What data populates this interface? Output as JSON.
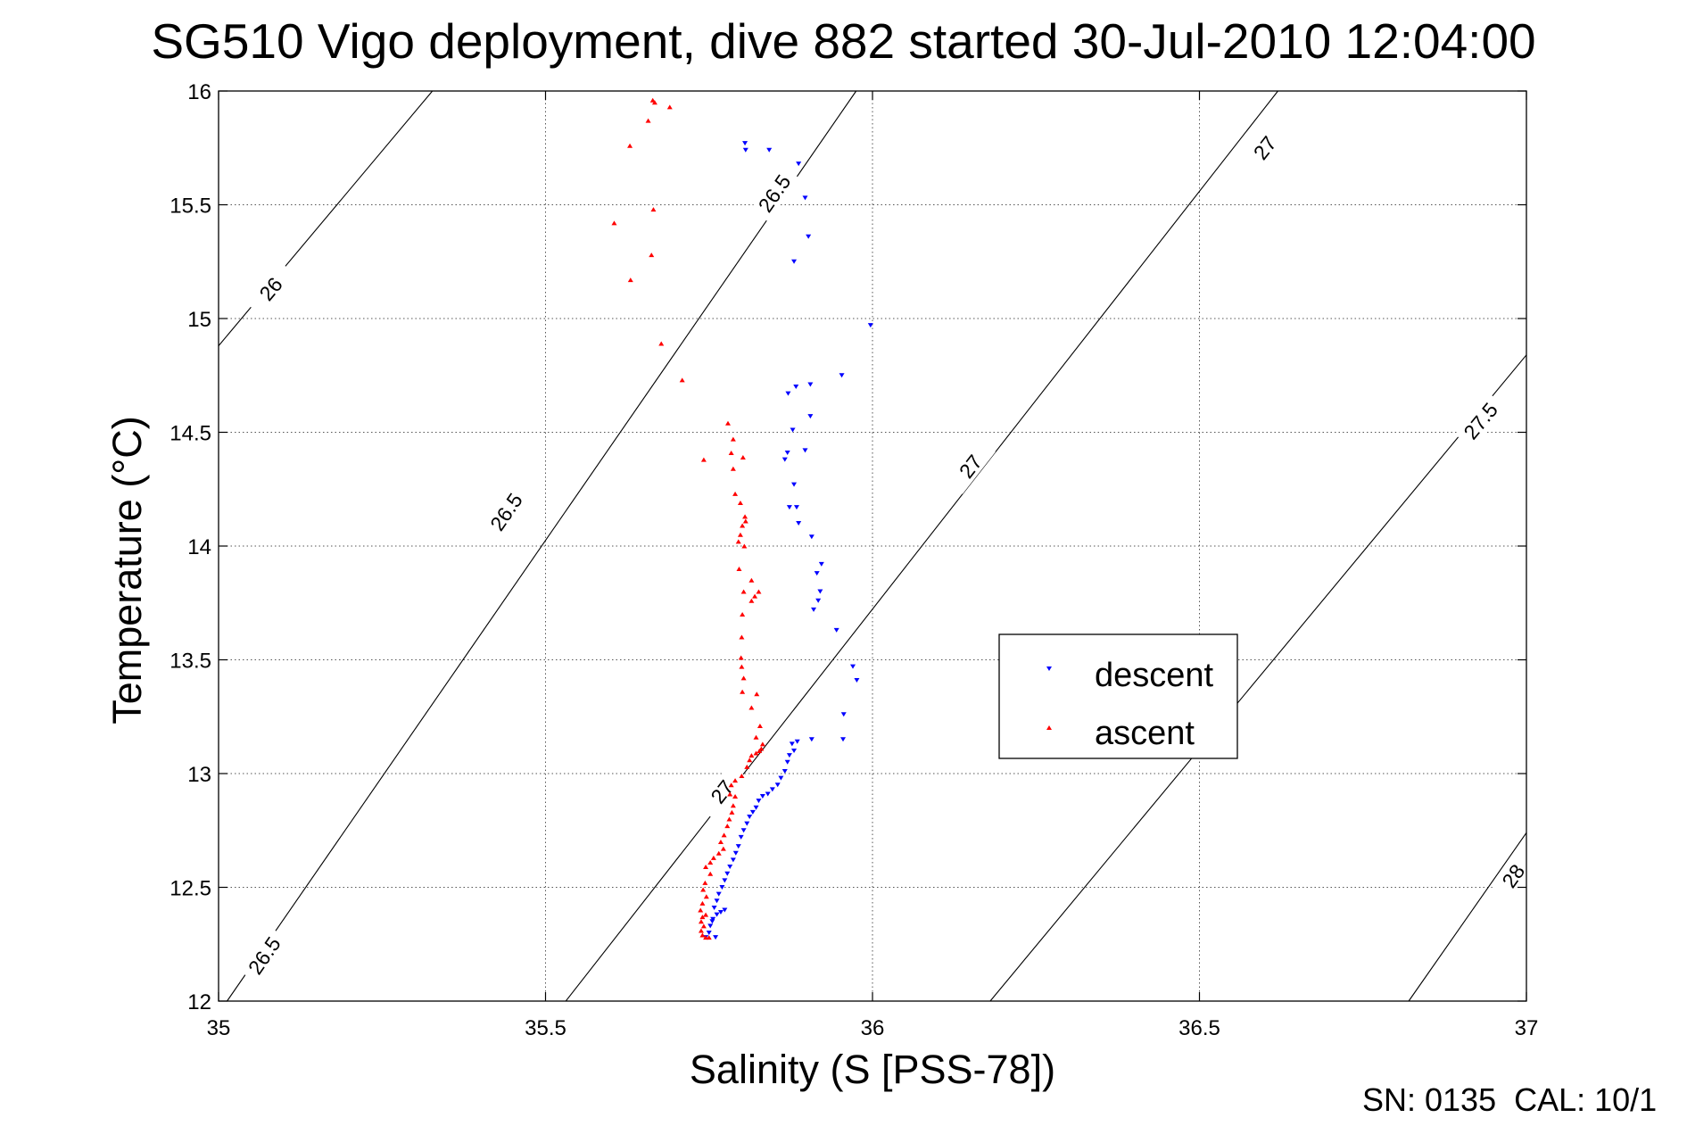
{
  "chart_data": {
    "type": "scatter",
    "title": "SG510 Vigo deployment, dive 882 started 30-Jul-2010 12:04:00",
    "xlabel": "Salinity (S [PSS-78])",
    "ylabel": "Temperature (°C)",
    "xlim": [
      35,
      37
    ],
    "ylim": [
      12,
      16
    ],
    "xticks": [
      35,
      35.5,
      36,
      36.5,
      37
    ],
    "xtick_labels": [
      "35",
      "35.5",
      "36",
      "36.5",
      "37"
    ],
    "yticks": [
      12,
      12.5,
      13,
      13.5,
      14,
      14.5,
      15,
      15.5,
      16
    ],
    "ytick_labels": [
      "12",
      "12.5",
      "13",
      "13.5",
      "14",
      "14.5",
      "15",
      "15.5",
      "16"
    ],
    "grid": true,
    "legend_position": "center-right",
    "footer": "SN: 0135  CAL: 10/1",
    "contours": [
      {
        "label": "26",
        "points": [
          [
            35,
            14.88
          ],
          [
            35.327,
            16
          ]
        ],
        "labels_at": [
          [
            35.08,
            15.13
          ]
        ]
      },
      {
        "label": "26.5",
        "points": [
          [
            35.013,
            12
          ],
          [
            35.975,
            16
          ]
        ],
        "labels_at": [
          [
            35.07,
            12.2
          ],
          [
            35.44,
            14.15
          ],
          [
            35.85,
            15.55
          ]
        ]
      },
      {
        "label": "27",
        "points": [
          [
            35.531,
            12
          ],
          [
            36.62,
            16
          ]
        ],
        "labels_at": [
          [
            35.77,
            12.92
          ],
          [
            36.15,
            14.35
          ],
          [
            36.6,
            15.75
          ]
        ]
      },
      {
        "label": "27.5",
        "points": [
          [
            36.18,
            12
          ],
          [
            37,
            14.84
          ]
        ],
        "labels_at": [
          [
            36.93,
            14.55
          ]
        ]
      },
      {
        "label": "28",
        "points": [
          [
            36.82,
            12
          ],
          [
            37,
            12.74
          ]
        ],
        "labels_at": [
          [
            36.98,
            12.55
          ]
        ]
      }
    ],
    "series": [
      {
        "name": "descent",
        "color": "#0000ff",
        "marker": "triangle-down",
        "points": [
          [
            35.805,
            15.77
          ],
          [
            35.806,
            15.74
          ],
          [
            35.842,
            15.74
          ],
          [
            35.887,
            15.68
          ],
          [
            35.897,
            15.53
          ],
          [
            35.902,
            15.36
          ],
          [
            35.88,
            15.25
          ],
          [
            35.997,
            14.97
          ],
          [
            35.953,
            14.75
          ],
          [
            35.905,
            14.71
          ],
          [
            35.883,
            14.7
          ],
          [
            35.871,
            14.67
          ],
          [
            35.905,
            14.57
          ],
          [
            35.878,
            14.51
          ],
          [
            35.87,
            14.41
          ],
          [
            35.897,
            14.42
          ],
          [
            35.866,
            14.38
          ],
          [
            35.88,
            14.27
          ],
          [
            35.873,
            14.17
          ],
          [
            35.884,
            14.17
          ],
          [
            35.887,
            14.1
          ],
          [
            35.907,
            14.04
          ],
          [
            35.922,
            13.92
          ],
          [
            35.915,
            13.88
          ],
          [
            35.92,
            13.8
          ],
          [
            35.917,
            13.76
          ],
          [
            35.91,
            13.72
          ],
          [
            35.945,
            13.63
          ],
          [
            35.97,
            13.47
          ],
          [
            35.976,
            13.41
          ],
          [
            35.956,
            13.26
          ],
          [
            35.955,
            13.15
          ],
          [
            35.907,
            13.15
          ],
          [
            35.885,
            13.14
          ],
          [
            35.877,
            13.13
          ],
          [
            35.88,
            13.1
          ],
          [
            35.873,
            13.08
          ],
          [
            35.87,
            13.05
          ],
          [
            35.866,
            13.01
          ],
          [
            35.86,
            12.98
          ],
          [
            35.855,
            12.95
          ],
          [
            35.847,
            12.93
          ],
          [
            35.84,
            12.91
          ],
          [
            35.832,
            12.9
          ],
          [
            35.826,
            12.88
          ],
          [
            35.822,
            12.85
          ],
          [
            35.817,
            12.83
          ],
          [
            35.812,
            12.81
          ],
          [
            35.808,
            12.78
          ],
          [
            35.803,
            12.75
          ],
          [
            35.799,
            12.72
          ],
          [
            35.795,
            12.68
          ],
          [
            35.791,
            12.65
          ],
          [
            35.787,
            12.62
          ],
          [
            35.782,
            12.59
          ],
          [
            35.778,
            12.56
          ],
          [
            35.774,
            12.53
          ],
          [
            35.77,
            12.5
          ],
          [
            35.765,
            12.47
          ],
          [
            35.762,
            12.44
          ],
          [
            35.758,
            12.41
          ],
          [
            35.774,
            12.4
          ],
          [
            35.768,
            12.39
          ],
          [
            35.762,
            12.38
          ],
          [
            35.756,
            12.36
          ],
          [
            35.752,
            12.33
          ],
          [
            35.75,
            12.3
          ],
          [
            35.745,
            12.28
          ],
          [
            35.76,
            12.28
          ],
          [
            35.755,
            12.35
          ]
        ]
      },
      {
        "name": "ascent",
        "color": "#ff0000",
        "marker": "triangle-up",
        "points": [
          [
            35.664,
            15.96
          ],
          [
            35.667,
            15.95
          ],
          [
            35.69,
            15.93
          ],
          [
            35.657,
            15.87
          ],
          [
            35.629,
            15.76
          ],
          [
            35.665,
            15.48
          ],
          [
            35.605,
            15.42
          ],
          [
            35.662,
            15.28
          ],
          [
            35.63,
            15.17
          ],
          [
            35.677,
            14.89
          ],
          [
            35.709,
            14.73
          ],
          [
            35.779,
            14.54
          ],
          [
            35.787,
            14.47
          ],
          [
            35.784,
            14.41
          ],
          [
            35.802,
            14.39
          ],
          [
            35.742,
            14.38
          ],
          [
            35.787,
            14.34
          ],
          [
            35.79,
            14.23
          ],
          [
            35.798,
            14.19
          ],
          [
            35.805,
            14.13
          ],
          [
            35.806,
            14.11
          ],
          [
            35.801,
            14.09
          ],
          [
            35.798,
            14.05
          ],
          [
            35.795,
            14.02
          ],
          [
            35.804,
            14.0
          ],
          [
            35.796,
            13.9
          ],
          [
            35.815,
            13.85
          ],
          [
            35.803,
            13.8
          ],
          [
            35.826,
            13.8
          ],
          [
            35.82,
            13.78
          ],
          [
            35.815,
            13.76
          ],
          [
            35.801,
            13.7
          ],
          [
            35.8,
            13.6
          ],
          [
            35.799,
            13.51
          ],
          [
            35.8,
            13.47
          ],
          [
            35.803,
            13.42
          ],
          [
            35.801,
            13.36
          ],
          [
            35.823,
            13.35
          ],
          [
            35.815,
            13.29
          ],
          [
            35.828,
            13.21
          ],
          [
            35.822,
            13.16
          ],
          [
            35.832,
            13.13
          ],
          [
            35.83,
            13.11
          ],
          [
            35.827,
            13.1
          ],
          [
            35.822,
            13.09
          ],
          [
            35.815,
            13.08
          ],
          [
            35.812,
            13.06
          ],
          [
            35.808,
            13.03
          ],
          [
            35.8,
            12.99
          ],
          [
            35.79,
            12.97
          ],
          [
            35.784,
            12.95
          ],
          [
            35.782,
            12.91
          ],
          [
            35.79,
            12.9
          ],
          [
            35.787,
            12.86
          ],
          [
            35.785,
            12.83
          ],
          [
            35.781,
            12.8
          ],
          [
            35.778,
            12.77
          ],
          [
            35.773,
            12.73
          ],
          [
            35.768,
            12.7
          ],
          [
            35.772,
            12.67
          ],
          [
            35.765,
            12.65
          ],
          [
            35.757,
            12.63
          ],
          [
            35.752,
            12.61
          ],
          [
            35.745,
            12.59
          ],
          [
            35.752,
            12.56
          ],
          [
            35.744,
            12.52
          ],
          [
            35.741,
            12.49
          ],
          [
            35.746,
            12.46
          ],
          [
            35.74,
            12.43
          ],
          [
            35.737,
            12.4
          ],
          [
            35.745,
            12.38
          ],
          [
            35.74,
            12.37
          ],
          [
            35.738,
            12.35
          ],
          [
            35.742,
            12.33
          ],
          [
            35.738,
            12.31
          ],
          [
            35.74,
            12.29
          ],
          [
            35.745,
            12.28
          ],
          [
            35.75,
            12.28
          ]
        ]
      }
    ]
  }
}
